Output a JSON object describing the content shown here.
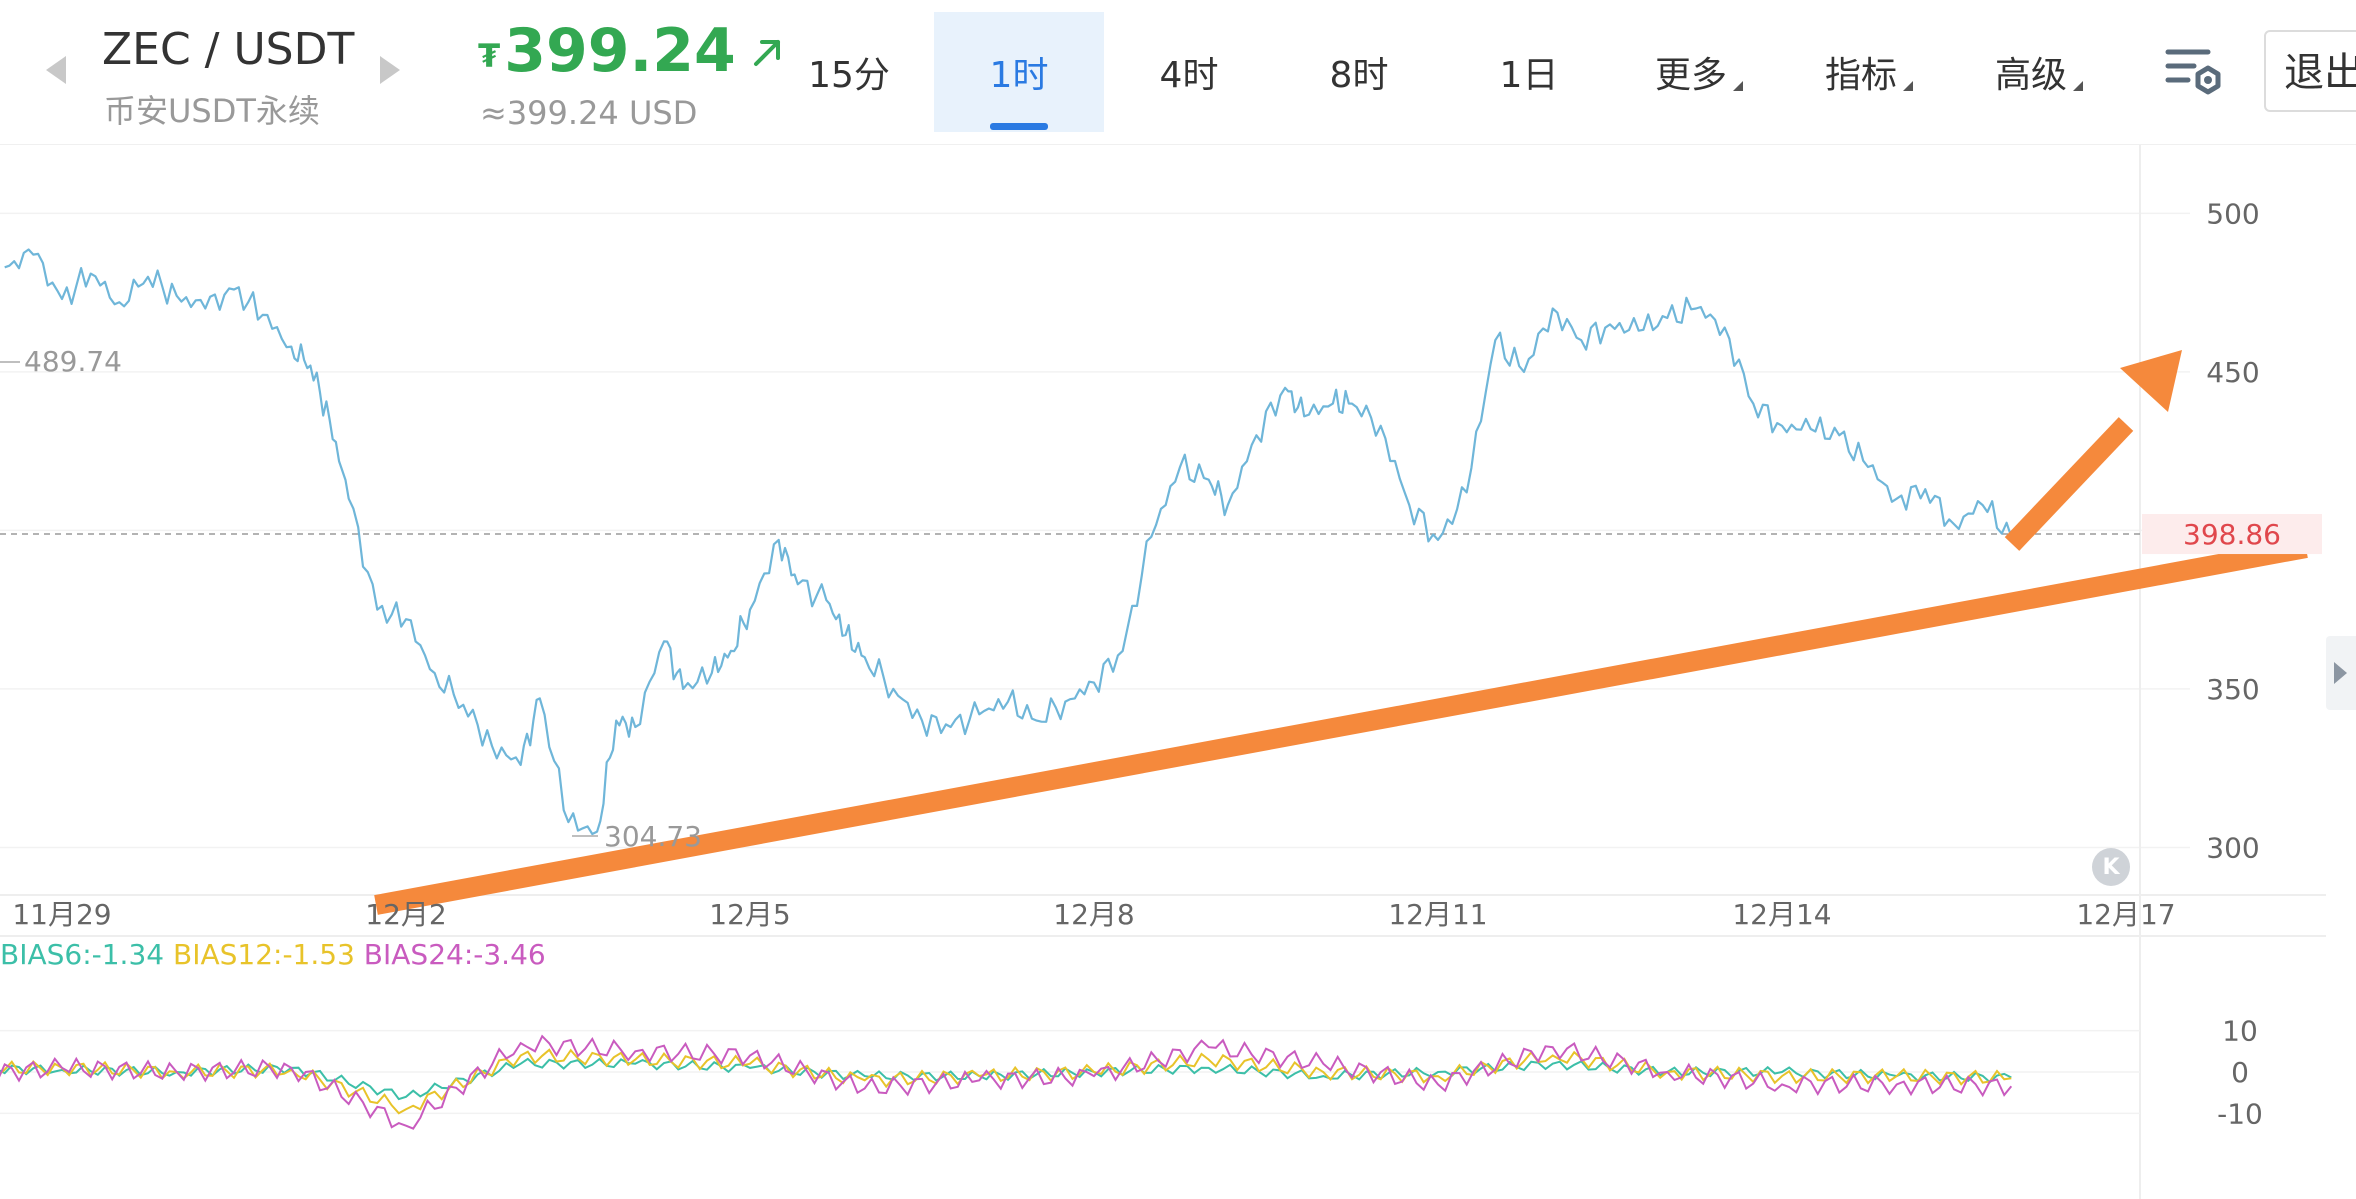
{
  "header": {
    "symbol": "ZEC / USDT",
    "exchange": "币安USDT永续",
    "currency_icon": "₮",
    "price": "399.24",
    "price_trend_icon": "up-right-arrow",
    "usd_price": "≈399.24 USD",
    "price_color": "#33a852"
  },
  "tabs": [
    {
      "label": "15分",
      "active": false
    },
    {
      "label": "1时",
      "active": true
    },
    {
      "label": "4时",
      "active": false
    },
    {
      "label": "8时",
      "active": false
    },
    {
      "label": "1日",
      "active": false
    }
  ],
  "menus": [
    {
      "label": "更多"
    },
    {
      "label": "指标"
    },
    {
      "label": "高级"
    }
  ],
  "icons": {
    "prev": "left-triangle-icon",
    "next": "right-triangle-icon",
    "settings": "chart-settings-icon",
    "reset": "scroll-to-latest-icon",
    "side": "side-panel-arrow-icon"
  },
  "exit_label": "退出",
  "colors": {
    "accent": "#2a7ae2",
    "price_line": "#6fb6d9",
    "last_price": "#e0474c",
    "overlay_arrow": "#f5893c",
    "bias6": "#3cbfa8",
    "bias12": "#e8c32a",
    "bias24": "#c95bbf"
  },
  "chart_data": [
    {
      "type": "line",
      "x_ticks": [
        "11月29",
        "12月2",
        "12月5",
        "12月8",
        "12月11",
        "12月14",
        "12月17"
      ],
      "y_ticks": [
        300,
        350,
        450,
        500
      ],
      "ylim": [
        285,
        520
      ],
      "last_price_label": "398.86",
      "last_price": 398.86,
      "high_label": "489.74",
      "low_label": "304.73",
      "series": [
        {
          "x": [
            "11-28 12:00",
            "11-28 18:00",
            "11-29 00:00",
            "11-29 06:00",
            "11-29 12:00",
            "11-29 18:00",
            "11-30 00:00",
            "11-30 06:00",
            "11-30 12:00",
            "11-30 18:00",
            "12-01 00:00",
            "12-01 04:00",
            "12-01 08:00",
            "12-01 12:00",
            "12-01 18:00",
            "12-02 00:00",
            "12-02 06:00",
            "12-02 12:00",
            "12-02 18:00",
            "12-03 00:00",
            "12-03 04:00",
            "12-03 10:00",
            "12-03 16:00",
            "12-03 20:00",
            "12-04 00:00",
            "12-04 06:00",
            "12-04 10:00",
            "12-04 16:00",
            "12-04 20:00",
            "12-05 00:00",
            "12-05 06:00",
            "12-05 10:00",
            "12-05 16:00",
            "12-05 20:00",
            "12-06 00:00",
            "12-06 06:00",
            "12-06 12:00",
            "12-06 18:00",
            "12-07 00:00",
            "12-07 06:00",
            "12-07 12:00",
            "12-07 18:00",
            "12-08 00:00",
            "12-08 06:00",
            "12-08 12:00",
            "12-08 18:00",
            "12-09 00:00",
            "12-09 04:00",
            "12-09 10:00",
            "12-09 16:00",
            "12-09 20:00",
            "12-10 02:00",
            "12-10 06:00",
            "12-10 12:00",
            "12-10 18:00",
            "12-11 00:00",
            "12-11 06:00",
            "12-11 12:00",
            "12-11 18:00",
            "12-12 00:00",
            "12-12 06:00",
            "12-12 12:00",
            "12-12 18:00",
            "12-13 00:00",
            "12-13 06:00",
            "12-13 12:00",
            "12-13 18:00",
            "12-14 00:00",
            "12-14 06:00",
            "12-14 12:00",
            "12-14 18:00",
            "12-15 00:00",
            "12-15 06:00",
            "12-15 12:00",
            "12-15 18:00",
            "12-16 00:00"
          ],
          "values": [
            483,
            487,
            473,
            481,
            472,
            480,
            474,
            470,
            476,
            468,
            458,
            452,
            435,
            410,
            375,
            372,
            355,
            345,
            332,
            326,
            347,
            308,
            305,
            340,
            338,
            365,
            350,
            355,
            362,
            375,
            397,
            383,
            378,
            367,
            360,
            350,
            340,
            338,
            342,
            346,
            340,
            346,
            352,
            362,
            398,
            420,
            416,
            408,
            430,
            445,
            436,
            440,
            440,
            433,
            408,
            397,
            412,
            460,
            450,
            470,
            460,
            465,
            463,
            467,
            470,
            464,
            440,
            433,
            432,
            430,
            420,
            410,
            413,
            402,
            408,
            398
          ]
        }
      ]
    },
    {
      "type": "line",
      "legend": [
        "BIAS6:-1.34",
        "BIAS12:-1.53",
        "BIAS24:-3.46"
      ],
      "y_ticks": [
        10,
        0,
        -10
      ],
      "ylim": [
        -15,
        15
      ],
      "x": [
        "11-28",
        "11-29",
        "11-30",
        "12-01",
        "12-02",
        "12-03",
        "12-04",
        "12-05",
        "12-06",
        "12-07",
        "12-08",
        "12-09",
        "12-10",
        "12-11",
        "12-12",
        "12-13",
        "12-14",
        "12-15",
        "12-16"
      ],
      "series": [
        {
          "name": "BIAS6",
          "values": [
            1,
            0.5,
            0,
            1,
            -6,
            2,
            2,
            1,
            -1,
            -1,
            0,
            1,
            -1,
            0,
            2,
            0,
            0,
            -1,
            -1.34
          ]
        },
        {
          "name": "BIAS12",
          "values": [
            0.5,
            1,
            0,
            0.5,
            -9,
            4,
            3,
            2,
            -2,
            -1,
            0,
            3,
            0,
            -1,
            4,
            0,
            -1,
            -1,
            -1.53
          ]
        },
        {
          "name": "BIAS24",
          "values": [
            -1,
            1,
            0,
            1,
            -13,
            7,
            5,
            4,
            -4,
            -2,
            -1,
            6,
            2,
            -3,
            6,
            0,
            -3,
            -3,
            -3.46
          ]
        }
      ]
    }
  ]
}
